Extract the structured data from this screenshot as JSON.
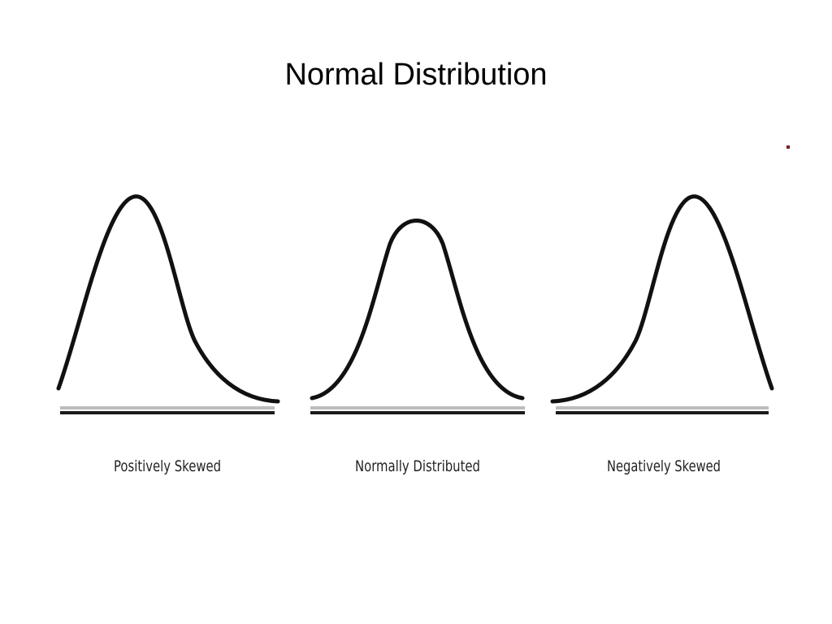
{
  "slide": {
    "title": "Normal Distribution"
  },
  "panels": [
    {
      "id": "positive",
      "caption": "Positively Skewed",
      "skew": "positive"
    },
    {
      "id": "normal",
      "caption": "Normally Distributed",
      "skew": "none"
    },
    {
      "id": "negative",
      "caption": "Negatively Skewed",
      "skew": "negative"
    }
  ],
  "colors": {
    "curve": "#111111",
    "baseline_dark": "#1a1a1a",
    "baseline_light": "#bdbdbd",
    "marker": "#7a1f1f"
  }
}
